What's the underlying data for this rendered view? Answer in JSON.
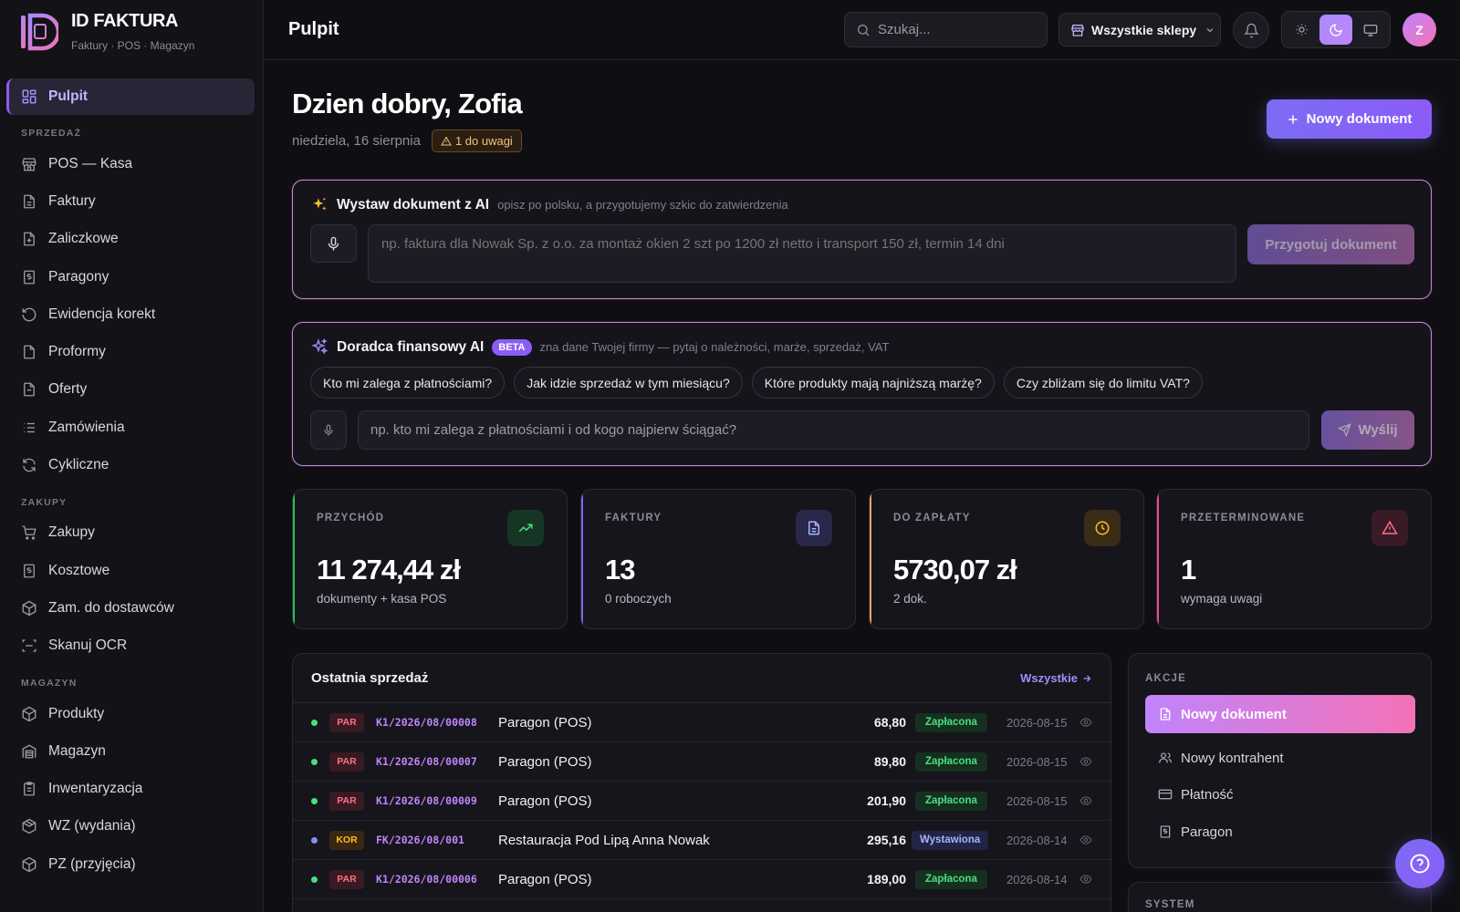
{
  "brand": {
    "name": "ID FAKTURA",
    "subtitle": "Faktury · POS · Magazyn"
  },
  "sidebar": {
    "active": {
      "label": "Pulpit",
      "icon": "dashboard-icon"
    },
    "sections": [
      {
        "title": "SPRZEDAŻ",
        "items": [
          {
            "label": "POS — Kasa",
            "icon": "store-icon"
          },
          {
            "label": "Faktury",
            "icon": "document-icon"
          },
          {
            "label": "Zaliczkowe",
            "icon": "document-plus-icon"
          },
          {
            "label": "Paragony",
            "icon": "receipt-icon"
          },
          {
            "label": "Ewidencja korekt",
            "icon": "undo-icon"
          },
          {
            "label": "Proformy",
            "icon": "document-icon"
          },
          {
            "label": "Oferty",
            "icon": "clipboard-icon"
          },
          {
            "label": "Zamówienia",
            "icon": "list-icon"
          },
          {
            "label": "Cykliczne",
            "icon": "refresh-icon"
          }
        ]
      },
      {
        "title": "ZAKUPY",
        "items": [
          {
            "label": "Zakupy",
            "icon": "cart-icon"
          },
          {
            "label": "Kosztowe",
            "icon": "receipt-icon"
          },
          {
            "label": "Zam. do dostawców",
            "icon": "package-icon"
          },
          {
            "label": "Skanuj OCR",
            "icon": "scan-icon"
          }
        ]
      },
      {
        "title": "MAGAZYN",
        "items": [
          {
            "label": "Produkty",
            "icon": "box-icon"
          },
          {
            "label": "Magazyn",
            "icon": "warehouse-icon"
          },
          {
            "label": "Inwentaryzacja",
            "icon": "clipboard-list-icon"
          },
          {
            "label": "WZ (wydania)",
            "icon": "boxes-icon"
          },
          {
            "label": "PZ (przyjęcia)",
            "icon": "package-in-icon"
          }
        ]
      }
    ]
  },
  "topbar": {
    "title": "Pulpit",
    "search_placeholder": "Szukaj...",
    "store_select": "Wszystkie sklepy",
    "theme_active": "dark",
    "avatar_initial": "Z"
  },
  "main": {
    "greeting": "Dzien dobry, Zofia",
    "date": "niedziela, 16 sierpnia",
    "attention_badge": "1 do uwagi",
    "new_document_button": "Nowy dokument"
  },
  "ai_document": {
    "title": "Wystaw dokument z AI",
    "subtitle": "opisz po polsku, a przygotujemy szkic do zatwierdzenia",
    "placeholder": "np. faktura dla Nowak Sp. z o.o. za montaż okien 2 szt po 1200 zł netto i transport 150 zł, termin 14 dni",
    "button": "Przygotuj dokument"
  },
  "ai_advisor": {
    "title": "Doradca finansowy AI",
    "badge": "BETA",
    "subtitle": "zna dane Twojej firmy — pytaj o należności, marże, sprzedaż, VAT",
    "chips": [
      "Kto mi zalega z płatnościami?",
      "Jak idzie sprzedaż w tym miesiącu?",
      "Które produkty mają najniższą marżę?",
      "Czy zbliżam się do limitu VAT?"
    ],
    "placeholder": "np. kto mi zalega z płatnościami i od kogo najpierw ściągać?",
    "send_button": "Wyślij"
  },
  "kpis": [
    {
      "label": "PRZYCHÓD",
      "value": "11 274,44 zł",
      "sub": "dokumenty + kasa POS",
      "icon": "trending-up-icon",
      "accent": "#22c55e"
    },
    {
      "label": "FAKTURY",
      "value": "13",
      "sub": "0 roboczych",
      "icon": "document-icon",
      "accent": "#8b5cf6"
    },
    {
      "label": "DO ZAPŁATY",
      "value": "5730,07 zł",
      "sub": "2 dok.",
      "icon": "clock-icon",
      "accent": "#f0a05a"
    },
    {
      "label": "PRZETERMINOWANE",
      "value": "1",
      "sub": "wymaga uwagi",
      "icon": "alert-triangle-icon",
      "accent": "#ec4899"
    }
  ],
  "recent_sales": {
    "title": "Ostatnia sprzedaż",
    "all_link": "Wszystkie",
    "rows": [
      {
        "type": "PAR",
        "number": "K1/2026/08/00008",
        "name": "Paragon (POS)",
        "amount": "68,80",
        "status": "Zapłacona",
        "date": "2026-08-15"
      },
      {
        "type": "PAR",
        "number": "K1/2026/08/00007",
        "name": "Paragon (POS)",
        "amount": "89,80",
        "status": "Zapłacona",
        "date": "2026-08-15"
      },
      {
        "type": "PAR",
        "number": "K1/2026/08/00009",
        "name": "Paragon (POS)",
        "amount": "201,90",
        "status": "Zapłacona",
        "date": "2026-08-15"
      },
      {
        "type": "KOR",
        "number": "FK/2026/08/001",
        "name": "Restauracja Pod Lipą Anna Nowak",
        "amount": "295,16",
        "status": "Wystawiona",
        "date": "2026-08-14"
      },
      {
        "type": "PAR",
        "number": "K1/2026/08/00006",
        "name": "Paragon (POS)",
        "amount": "189,00",
        "status": "Zapłacona",
        "date": "2026-08-14"
      }
    ]
  },
  "actions": {
    "title": "AKCJE",
    "primary": "Nowy dokument",
    "items": [
      {
        "label": "Nowy kontrahent",
        "icon": "users-icon"
      },
      {
        "label": "Płatność",
        "icon": "credit-card-icon"
      },
      {
        "label": "Paragon",
        "icon": "receipt-icon"
      }
    ]
  },
  "system": {
    "title": "SYSTEM"
  }
}
